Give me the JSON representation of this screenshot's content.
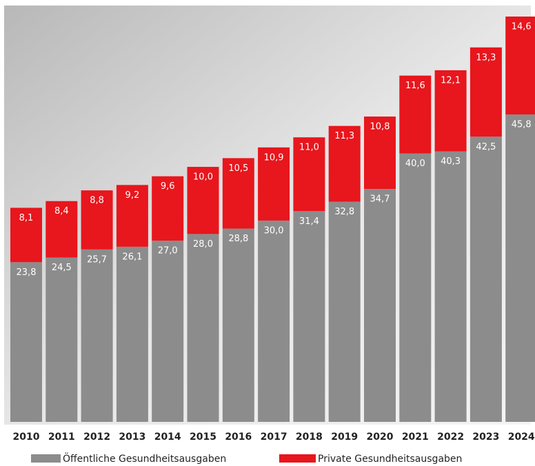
{
  "chart_data": {
    "type": "stacked-bar",
    "categories": [
      "2010",
      "2011",
      "2012",
      "2013",
      "2014",
      "2015",
      "2016",
      "2017",
      "2018",
      "2019",
      "2020",
      "2021",
      "2022",
      "2023",
      "2024"
    ],
    "series": [
      {
        "name": "Öffentliche Gesundheitsausgaben",
        "color": "#8c8c8c",
        "values": [
          23.8,
          24.5,
          25.7,
          26.1,
          27.0,
          28.0,
          28.8,
          30.0,
          31.4,
          32.8,
          34.7,
          40.0,
          40.3,
          42.5,
          45.8
        ],
        "value_labels": [
          "23,8",
          "24,5",
          "25,7",
          "26,1",
          "27,0",
          "28,0",
          "28,8",
          "30,0",
          "31,4",
          "32,8",
          "34,7",
          "40,0",
          "40,3",
          "42,5",
          "45,8"
        ]
      },
      {
        "name": "Private Gesundheitsausgaben",
        "color": "#e8161d",
        "values": [
          8.1,
          8.4,
          8.8,
          9.2,
          9.6,
          10.0,
          10.5,
          10.9,
          11.0,
          11.3,
          10.8,
          11.6,
          12.1,
          13.3,
          14.6
        ],
        "value_labels": [
          "8,1",
          "8,4",
          "8,8",
          "9,2",
          "9,6",
          "10,0",
          "10,5",
          "10,9",
          "11,0",
          "11,3",
          "10,8",
          "11,6",
          "12,1",
          "13,3",
          "14,6"
        ]
      }
    ]
  }
}
